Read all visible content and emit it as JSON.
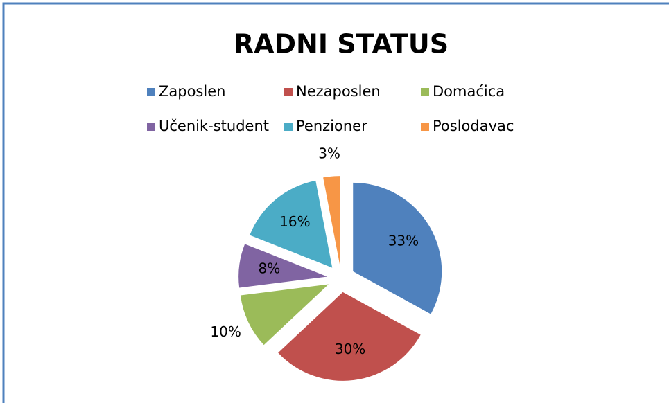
{
  "chart_data": {
    "type": "pie",
    "title": "RADNI STATUS",
    "categories": [
      "Zaposlen",
      "Nezaposlen",
      "Domaćica",
      "Učenik-student",
      "Penzioner",
      "Poslodavac"
    ],
    "values": [
      33,
      30,
      10,
      8,
      16,
      3
    ],
    "value_labels": [
      "33%",
      "30%",
      "10%",
      "8%",
      "16%",
      "3%"
    ],
    "colors": [
      "#4f81bd",
      "#c0504d",
      "#9bbb59",
      "#8064a2",
      "#4bacc6",
      "#f79646"
    ],
    "legend": "top"
  }
}
